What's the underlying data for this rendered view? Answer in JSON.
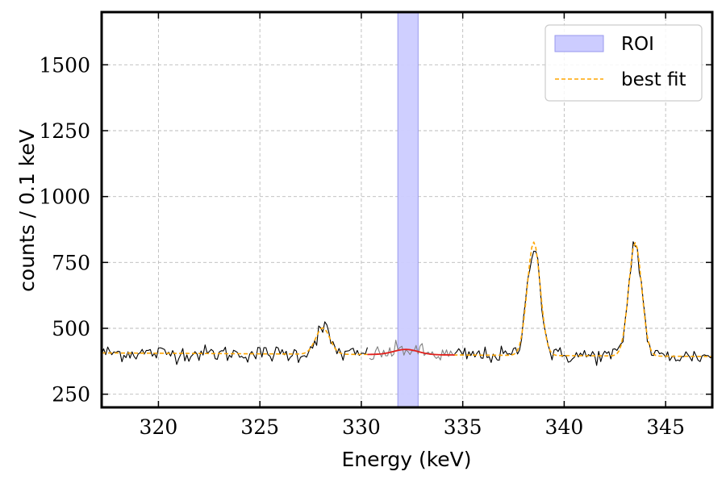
{
  "chart_data": {
    "type": "line",
    "title": "",
    "xlabel": "Energy (keV)",
    "ylabel": "counts / 0.1 keV",
    "xlim": [
      317.2,
      347.3
    ],
    "ylim": [
      200,
      1700
    ],
    "xticks": [
      320,
      325,
      330,
      335,
      340,
      345
    ],
    "yticks": [
      250,
      500,
      750,
      1000,
      1250,
      1500
    ],
    "grid": true,
    "legend_position": "top-right",
    "roi": {
      "name": "ROI",
      "xmin": 331.8,
      "xmax": 332.8,
      "color": "#ccccff"
    },
    "baseline": {
      "coeffs": [
        400,
        -0.45
      ],
      "ref": 332,
      "noise": 14,
      "step": 0.1
    },
    "peaks": [
      {
        "center": 328.1,
        "amplitude": 100,
        "sigma": 0.35
      },
      {
        "center": 332.2,
        "amplitude": 20,
        "sigma": 0.6
      },
      {
        "center": 338.5,
        "amplitude": 430,
        "sigma": 0.32
      },
      {
        "center": 343.5,
        "amplitude": 430,
        "sigma": 0.32
      }
    ],
    "series": [
      {
        "name": "",
        "kind": "data",
        "segments": [
          [
            317.2,
            330.3
          ],
          [
            334.6,
            347.3
          ]
        ],
        "color": "#000000"
      },
      {
        "name": "",
        "kind": "data-masked",
        "segments": [
          [
            330.4,
            334.5
          ]
        ],
        "color": "#808080"
      },
      {
        "name": "best fit",
        "kind": "fit",
        "segments": [
          [
            317.2,
            347.3
          ]
        ],
        "color": "#ffa500",
        "dashed": true
      },
      {
        "name": "",
        "kind": "fit-roi",
        "segments": [
          [
            330.3,
            334.6
          ]
        ],
        "color": "#e02020"
      }
    ],
    "legend": [
      {
        "label": "ROI",
        "kind": "patch",
        "color": "#ccccff"
      },
      {
        "label": "best fit",
        "kind": "dashed-line",
        "color": "#ffa500"
      }
    ]
  }
}
